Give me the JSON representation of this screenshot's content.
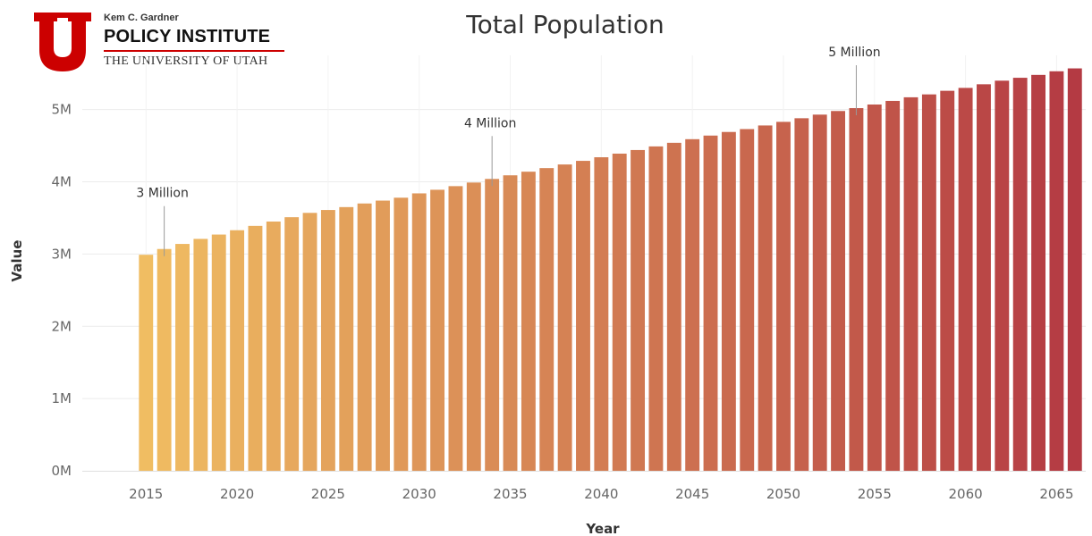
{
  "logo": {
    "line1": "Kem C. Gardner",
    "line2": "POLICY INSTITUTE",
    "line3": "THE UNIVERSITY OF UTAH",
    "brand_color": "#cc0000"
  },
  "chart_data": {
    "type": "bar",
    "title": "Total Population",
    "xlabel": "Year",
    "ylabel": "Value",
    "x": [
      2015,
      2016,
      2017,
      2018,
      2019,
      2020,
      2021,
      2022,
      2023,
      2024,
      2025,
      2026,
      2027,
      2028,
      2029,
      2030,
      2031,
      2032,
      2033,
      2034,
      2035,
      2036,
      2037,
      2038,
      2039,
      2040,
      2041,
      2042,
      2043,
      2044,
      2045,
      2046,
      2047,
      2048,
      2049,
      2050,
      2051,
      2052,
      2053,
      2054,
      2055,
      2056,
      2057,
      2058,
      2059,
      2060,
      2061,
      2062,
      2063,
      2064,
      2065,
      2066
    ],
    "values": [
      2.99,
      3.07,
      3.14,
      3.21,
      3.27,
      3.33,
      3.39,
      3.45,
      3.51,
      3.57,
      3.61,
      3.65,
      3.7,
      3.74,
      3.78,
      3.84,
      3.89,
      3.94,
      3.99,
      4.04,
      4.09,
      4.14,
      4.19,
      4.24,
      4.29,
      4.34,
      4.39,
      4.44,
      4.49,
      4.54,
      4.59,
      4.64,
      4.69,
      4.73,
      4.78,
      4.83,
      4.88,
      4.93,
      4.98,
      5.02,
      5.07,
      5.12,
      5.17,
      5.21,
      5.26,
      5.3,
      5.35,
      5.4,
      5.44,
      5.48,
      5.53,
      5.57
    ],
    "value_unit": "millions",
    "ylim": [
      0,
      5.75
    ],
    "yticks": [
      0,
      1,
      2,
      3,
      4,
      5
    ],
    "ytick_labels": [
      "0M",
      "1M",
      "2M",
      "3M",
      "4M",
      "5M"
    ],
    "xticks": [
      2015,
      2020,
      2025,
      2030,
      2035,
      2040,
      2045,
      2050,
      2055,
      2060,
      2065
    ],
    "xlim": [
      2011.5,
      2066.6
    ],
    "grid": true,
    "color_start": "#f0bd62",
    "color_end": "#b43a43",
    "annotations": [
      {
        "text": "3 Million",
        "x": 2016
      },
      {
        "text": "4 Million",
        "x": 2034
      },
      {
        "text": "5 Million",
        "x": 2054
      }
    ]
  }
}
